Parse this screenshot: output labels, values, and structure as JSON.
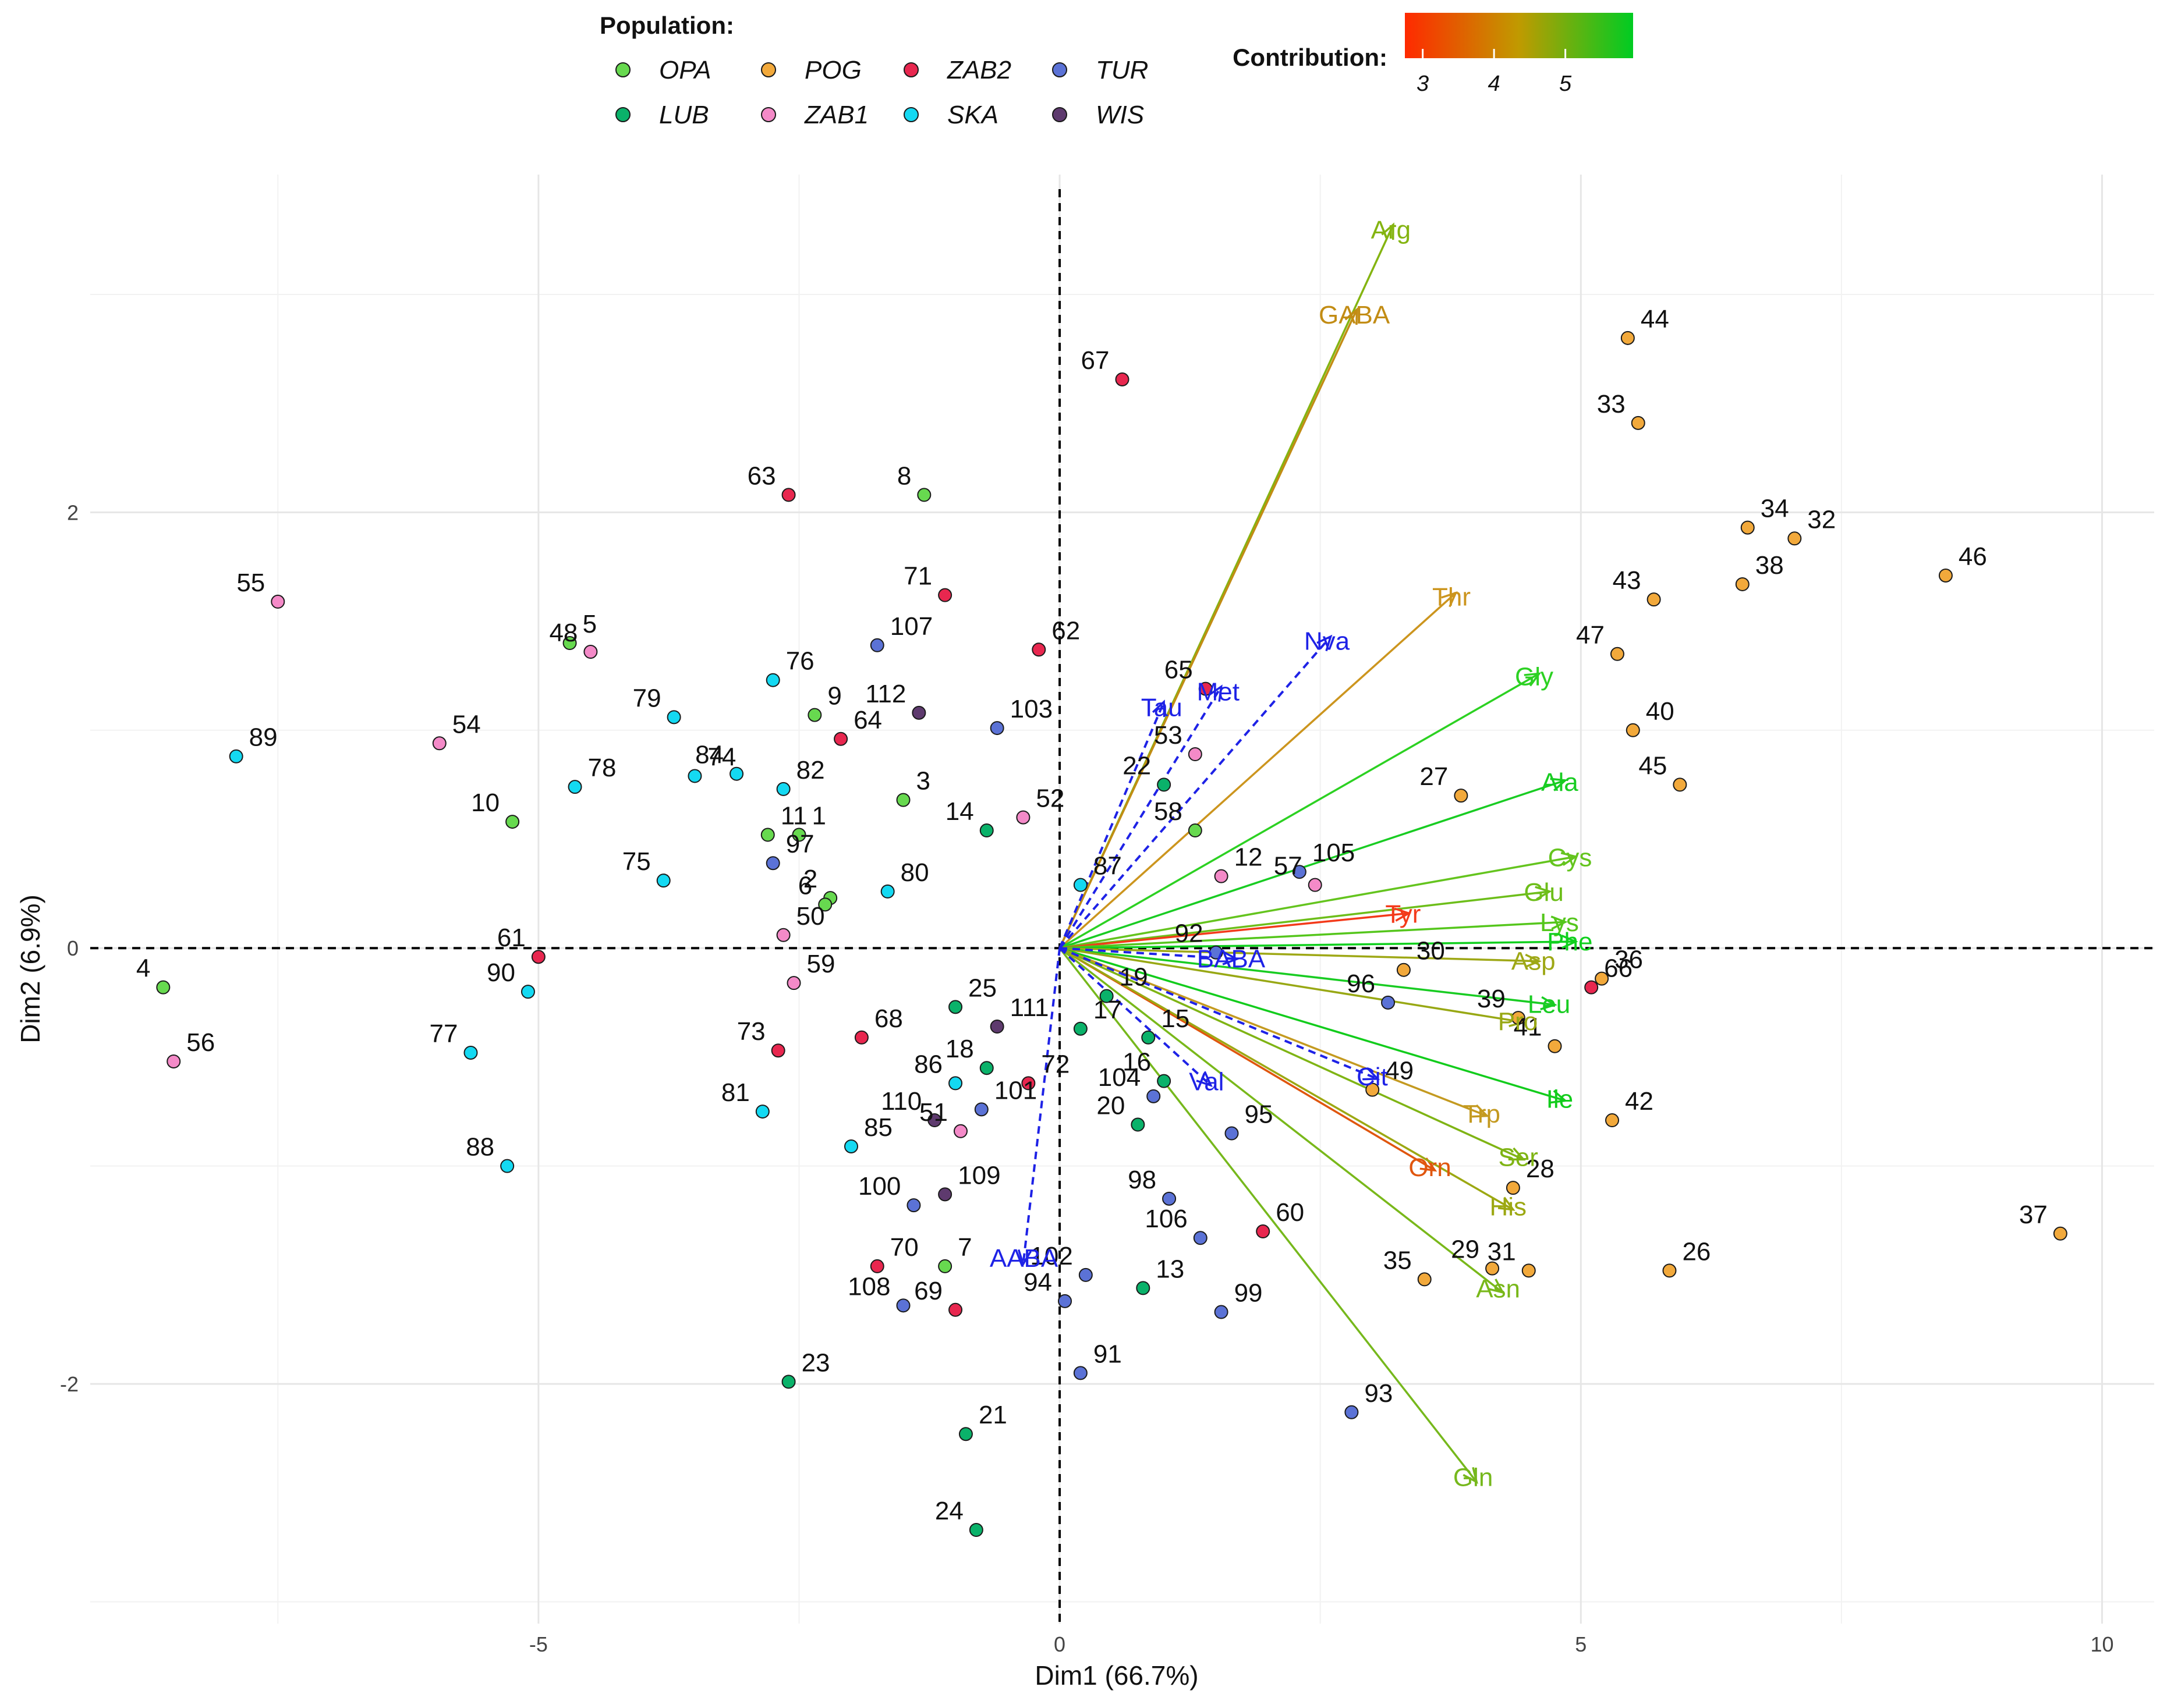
{
  "chart_data": {
    "type": "scatter",
    "subtype": "pca-biplot",
    "xlabel": "Dim1 (66.7%)",
    "ylabel": "Dim2 (6.9%)",
    "xlim": [
      -9.3,
      10.5
    ],
    "ylim": [
      -3.1,
      3.55
    ],
    "xticks": [
      -5,
      0,
      5,
      10
    ],
    "yticks": [
      -2,
      0,
      2
    ],
    "xtick_labels": [
      "-5",
      "0",
      "5",
      "10"
    ],
    "ytick_labels": [
      "-2",
      "0",
      "2"
    ],
    "grid": true,
    "legend": {
      "title": "Population:",
      "position": "top",
      "entries": [
        {
          "name": "OPA",
          "color": "#67D94F"
        },
        {
          "name": "POG",
          "color": "#F2A93B"
        },
        {
          "name": "ZAB2",
          "color": "#E8274F"
        },
        {
          "name": "TUR",
          "color": "#5B72D6"
        },
        {
          "name": "LUB",
          "color": "#0AB26A"
        },
        {
          "name": "ZAB1",
          "color": "#F48AC8"
        },
        {
          "name": "SKA",
          "color": "#14D9F2"
        },
        {
          "name": "WIS",
          "color": "#5E3A6E"
        }
      ]
    },
    "colorbar": {
      "title": "Contribution:",
      "ticks": [
        3,
        4,
        5
      ],
      "tick_labels": [
        "3",
        "4",
        "5"
      ],
      "range": [
        2.75,
        5.95
      ],
      "colors": [
        "#FF2A00",
        "#C09A00",
        "#00CC22"
      ]
    },
    "series": [
      {
        "name": "OPA",
        "points": [
          {
            "label": "1",
            "x": -2.5,
            "y": 0.52
          },
          {
            "label": "2",
            "x": -2.2,
            "y": 0.23
          },
          {
            "label": "3",
            "x": -1.5,
            "y": 0.68
          },
          {
            "label": "4",
            "x": -8.6,
            "y": -0.18
          },
          {
            "label": "5",
            "x": -4.7,
            "y": 1.4
          },
          {
            "label": "6",
            "x": -2.25,
            "y": 0.2
          },
          {
            "label": "7",
            "x": -1.1,
            "y": -1.46
          },
          {
            "label": "8",
            "x": -1.3,
            "y": 2.08
          },
          {
            "label": "9",
            "x": -2.35,
            "y": 1.07
          },
          {
            "label": "10",
            "x": -5.25,
            "y": 0.58
          },
          {
            "label": "11",
            "x": -2.8,
            "y": 0.52
          },
          {
            "label": "58",
            "x": 1.3,
            "y": 0.54
          }
        ]
      },
      {
        "name": "POG",
        "points": [
          {
            "label": "26",
            "x": 5.85,
            "y": -1.48
          },
          {
            "label": "27",
            "x": 3.85,
            "y": 0.7
          },
          {
            "label": "28",
            "x": 4.35,
            "y": -1.1
          },
          {
            "label": "29",
            "x": 4.15,
            "y": -1.47
          },
          {
            "label": "30",
            "x": 3.3,
            "y": -0.1
          },
          {
            "label": "31",
            "x": 4.5,
            "y": -1.48
          },
          {
            "label": "32",
            "x": 7.05,
            "y": 1.88
          },
          {
            "label": "33",
            "x": 5.55,
            "y": 2.41
          },
          {
            "label": "34",
            "x": 6.6,
            "y": 1.93
          },
          {
            "label": "35",
            "x": 3.5,
            "y": -1.52
          },
          {
            "label": "36",
            "x": 5.2,
            "y": -0.14
          },
          {
            "label": "37",
            "x": 9.6,
            "y": -1.31
          },
          {
            "label": "38",
            "x": 6.55,
            "y": 1.67
          },
          {
            "label": "39",
            "x": 4.4,
            "y": -0.32
          },
          {
            "label": "40",
            "x": 5.5,
            "y": 1.0
          },
          {
            "label": "41",
            "x": 4.75,
            "y": -0.45
          },
          {
            "label": "42",
            "x": 5.3,
            "y": -0.79
          },
          {
            "label": "43",
            "x": 5.7,
            "y": 1.6
          },
          {
            "label": "44",
            "x": 5.45,
            "y": 2.8
          },
          {
            "label": "45",
            "x": 5.95,
            "y": 0.75
          },
          {
            "label": "46",
            "x": 8.5,
            "y": 1.71
          },
          {
            "label": "47",
            "x": 5.35,
            "y": 1.35
          },
          {
            "label": "49",
            "x": 3.0,
            "y": -0.65
          }
        ]
      },
      {
        "name": "ZAB2",
        "points": [
          {
            "label": "60",
            "x": 1.95,
            "y": -1.3
          },
          {
            "label": "61",
            "x": -5.0,
            "y": -0.04
          },
          {
            "label": "62",
            "x": -0.2,
            "y": 1.37
          },
          {
            "label": "63",
            "x": -2.6,
            "y": 2.08
          },
          {
            "label": "64",
            "x": -2.1,
            "y": 0.96
          },
          {
            "label": "65",
            "x": 1.4,
            "y": 1.19
          },
          {
            "label": "66",
            "x": 5.1,
            "y": -0.18
          },
          {
            "label": "67",
            "x": 0.6,
            "y": 2.61
          },
          {
            "label": "68",
            "x": -1.9,
            "y": -0.41
          },
          {
            "label": "69",
            "x": -1.0,
            "y": -1.66
          },
          {
            "label": "70",
            "x": -1.75,
            "y": -1.46
          },
          {
            "label": "71",
            "x": -1.1,
            "y": 1.62
          },
          {
            "label": "72",
            "x": -0.3,
            "y": -0.62
          },
          {
            "label": "73",
            "x": -2.7,
            "y": -0.47
          }
        ]
      },
      {
        "name": "TUR",
        "points": [
          {
            "label": "91",
            "x": 0.2,
            "y": -1.95
          },
          {
            "label": "92",
            "x": 1.5,
            "y": -0.02
          },
          {
            "label": "93",
            "x": 2.8,
            "y": -2.13
          },
          {
            "label": "94",
            "x": 0.05,
            "y": -1.62
          },
          {
            "label": "95",
            "x": 1.65,
            "y": -0.85
          },
          {
            "label": "96",
            "x": 3.15,
            "y": -0.25
          },
          {
            "label": "97",
            "x": -2.75,
            "y": 0.39
          },
          {
            "label": "98",
            "x": 1.05,
            "y": -1.15
          },
          {
            "label": "99",
            "x": 1.55,
            "y": -1.67
          },
          {
            "label": "100",
            "x": -1.4,
            "y": -1.18
          },
          {
            "label": "101",
            "x": -0.75,
            "y": -0.74
          },
          {
            "label": "102",
            "x": 0.25,
            "y": -1.5
          },
          {
            "label": "103",
            "x": -0.6,
            "y": 1.01
          },
          {
            "label": "104",
            "x": 0.9,
            "y": -0.68
          },
          {
            "label": "105",
            "x": 2.3,
            "y": 0.35
          },
          {
            "label": "106",
            "x": 1.35,
            "y": -1.33
          },
          {
            "label": "107",
            "x": -1.75,
            "y": 1.39
          },
          {
            "label": "108",
            "x": -1.5,
            "y": -1.64
          }
        ]
      },
      {
        "name": "LUB",
        "points": [
          {
            "label": "13",
            "x": 0.8,
            "y": -1.56
          },
          {
            "label": "14",
            "x": -0.7,
            "y": 0.54
          },
          {
            "label": "15",
            "x": 0.85,
            "y": -0.41
          },
          {
            "label": "16",
            "x": 1.0,
            "y": -0.61
          },
          {
            "label": "17",
            "x": 0.2,
            "y": -0.37
          },
          {
            "label": "18",
            "x": -0.7,
            "y": -0.55
          },
          {
            "label": "19",
            "x": 0.45,
            "y": -0.22
          },
          {
            "label": "20",
            "x": 0.75,
            "y": -0.81
          },
          {
            "label": "21",
            "x": -0.9,
            "y": -2.23
          },
          {
            "label": "22",
            "x": 1.0,
            "y": 0.75
          },
          {
            "label": "23",
            "x": -2.6,
            "y": -1.99
          },
          {
            "label": "24",
            "x": -0.8,
            "y": -2.67
          },
          {
            "label": "25",
            "x": -1.0,
            "y": -0.27
          }
        ]
      },
      {
        "name": "ZAB1",
        "points": [
          {
            "label": "12",
            "x": 1.55,
            "y": 0.33
          },
          {
            "label": "48",
            "x": -4.5,
            "y": 1.36
          },
          {
            "label": "50",
            "x": -2.65,
            "y": 0.06
          },
          {
            "label": "51",
            "x": -0.95,
            "y": -0.84
          },
          {
            "label": "52",
            "x": -0.35,
            "y": 0.6
          },
          {
            "label": "53",
            "x": 1.3,
            "y": 0.89
          },
          {
            "label": "54",
            "x": -5.95,
            "y": 0.94
          },
          {
            "label": "55",
            "x": -7.5,
            "y": 1.59
          },
          {
            "label": "56",
            "x": -8.5,
            "y": -0.52
          },
          {
            "label": "57",
            "x": 2.45,
            "y": 0.29
          },
          {
            "label": "59",
            "x": -2.55,
            "y": -0.16
          }
        ]
      },
      {
        "name": "SKA",
        "points": [
          {
            "label": "74",
            "x": -3.5,
            "y": 0.79
          },
          {
            "label": "75",
            "x": -3.8,
            "y": 0.31
          },
          {
            "label": "76",
            "x": -2.75,
            "y": 1.23
          },
          {
            "label": "77",
            "x": -5.65,
            "y": -0.48
          },
          {
            "label": "78",
            "x": -4.65,
            "y": 0.74
          },
          {
            "label": "79",
            "x": -3.7,
            "y": 1.06
          },
          {
            "label": "80",
            "x": -1.65,
            "y": 0.26
          },
          {
            "label": "81",
            "x": -2.85,
            "y": -0.75
          },
          {
            "label": "82",
            "x": -2.65,
            "y": 0.73
          },
          {
            "label": "84",
            "x": -3.1,
            "y": 0.8
          },
          {
            "label": "85",
            "x": -2.0,
            "y": -0.91
          },
          {
            "label": "86",
            "x": -1.0,
            "y": -0.62
          },
          {
            "label": "87",
            "x": 0.2,
            "y": 0.29
          },
          {
            "label": "88",
            "x": -5.3,
            "y": -1.0
          },
          {
            "label": "89",
            "x": -7.9,
            "y": 0.88
          },
          {
            "label": "90",
            "x": -5.1,
            "y": -0.2
          }
        ]
      },
      {
        "name": "WIS",
        "points": [
          {
            "label": "109",
            "x": -1.1,
            "y": -1.13
          },
          {
            "label": "110",
            "x": -1.2,
            "y": -0.79
          },
          {
            "label": "111",
            "x": -0.6,
            "y": -0.36
          },
          {
            "label": "112",
            "x": -1.35,
            "y": 1.08
          }
        ]
      }
    ],
    "variables": [
      {
        "name": "Arg",
        "x": 3.2,
        "y": 3.32,
        "contrib": 4.6,
        "color": "#84B411",
        "type": "active"
      },
      {
        "name": "GABA",
        "x": 2.85,
        "y": 2.93,
        "contrib": 3.9,
        "color": "#C28C14",
        "type": "active"
      },
      {
        "name": "Thr",
        "x": 3.8,
        "y": 1.63,
        "contrib": 3.8,
        "color": "#CC951E",
        "type": "active"
      },
      {
        "name": "Gly",
        "x": 4.6,
        "y": 1.26,
        "contrib": 5.5,
        "color": "#2CD122",
        "type": "active"
      },
      {
        "name": "Ala",
        "x": 4.85,
        "y": 0.77,
        "contrib": 5.7,
        "color": "#18CC22",
        "type": "active"
      },
      {
        "name": "Cys",
        "x": 4.95,
        "y": 0.42,
        "contrib": 5.1,
        "color": "#64C41E",
        "type": "active"
      },
      {
        "name": "Glu",
        "x": 4.7,
        "y": 0.26,
        "contrib": 5.0,
        "color": "#6DBE1A",
        "type": "active"
      },
      {
        "name": "Tyr",
        "x": 3.35,
        "y": 0.16,
        "contrib": 2.9,
        "color": "#F33A1A",
        "type": "active"
      },
      {
        "name": "Lys",
        "x": 4.85,
        "y": 0.12,
        "contrib": 5.2,
        "color": "#55C61C",
        "type": "active"
      },
      {
        "name": "Phe",
        "x": 4.95,
        "y": 0.03,
        "contrib": 5.8,
        "color": "#10D01E",
        "type": "active"
      },
      {
        "name": "Asp",
        "x": 4.6,
        "y": -0.06,
        "contrib": 4.3,
        "color": "#9EA816",
        "type": "active"
      },
      {
        "name": "Leu",
        "x": 4.75,
        "y": -0.26,
        "contrib": 5.7,
        "color": "#18CC22",
        "type": "active"
      },
      {
        "name": "Pro",
        "x": 4.45,
        "y": -0.34,
        "contrib": 4.4,
        "color": "#98A814",
        "type": "active"
      },
      {
        "name": "Ile",
        "x": 4.85,
        "y": -0.7,
        "contrib": 5.8,
        "color": "#12CC1C",
        "type": "active"
      },
      {
        "name": "Trp",
        "x": 4.1,
        "y": -0.77,
        "contrib": 4.2,
        "color": "#C49A20",
        "type": "active"
      },
      {
        "name": "Ser",
        "x": 4.45,
        "y": -0.97,
        "contrib": 4.7,
        "color": "#7FB414",
        "type": "active"
      },
      {
        "name": "Orn",
        "x": 3.6,
        "y": -1.02,
        "contrib": 3.3,
        "color": "#E0560E",
        "type": "active"
      },
      {
        "name": "His",
        "x": 4.35,
        "y": -1.2,
        "contrib": 4.4,
        "color": "#9CA812",
        "type": "active"
      },
      {
        "name": "Asn",
        "x": 4.25,
        "y": -1.58,
        "contrib": 4.8,
        "color": "#79B81A",
        "type": "active"
      },
      {
        "name": "Gln",
        "x": 4.0,
        "y": -2.45,
        "contrib": 4.8,
        "color": "#76B81C",
        "type": "active"
      },
      {
        "name": "Nva",
        "x": 2.6,
        "y": 1.43,
        "color": "#1E22E6",
        "type": "supplementary"
      },
      {
        "name": "Met",
        "x": 1.55,
        "y": 1.2,
        "color": "#1E22E6",
        "type": "supplementary"
      },
      {
        "name": "Tau",
        "x": 1.0,
        "y": 1.13,
        "color": "#1E22E6",
        "type": "supplementary"
      },
      {
        "name": "BABA",
        "x": 1.7,
        "y": -0.05,
        "color": "#1E22E6",
        "type": "supplementary"
      },
      {
        "name": "Val",
        "x": 1.45,
        "y": -0.63,
        "color": "#1E22E6",
        "type": "supplementary"
      },
      {
        "name": "Cit",
        "x": 3.05,
        "y": -0.6,
        "color": "#1E22E6",
        "type": "supplementary"
      },
      {
        "name": "AABA",
        "x": -0.35,
        "y": -1.45,
        "color": "#1E22E6",
        "type": "supplementary"
      }
    ]
  }
}
